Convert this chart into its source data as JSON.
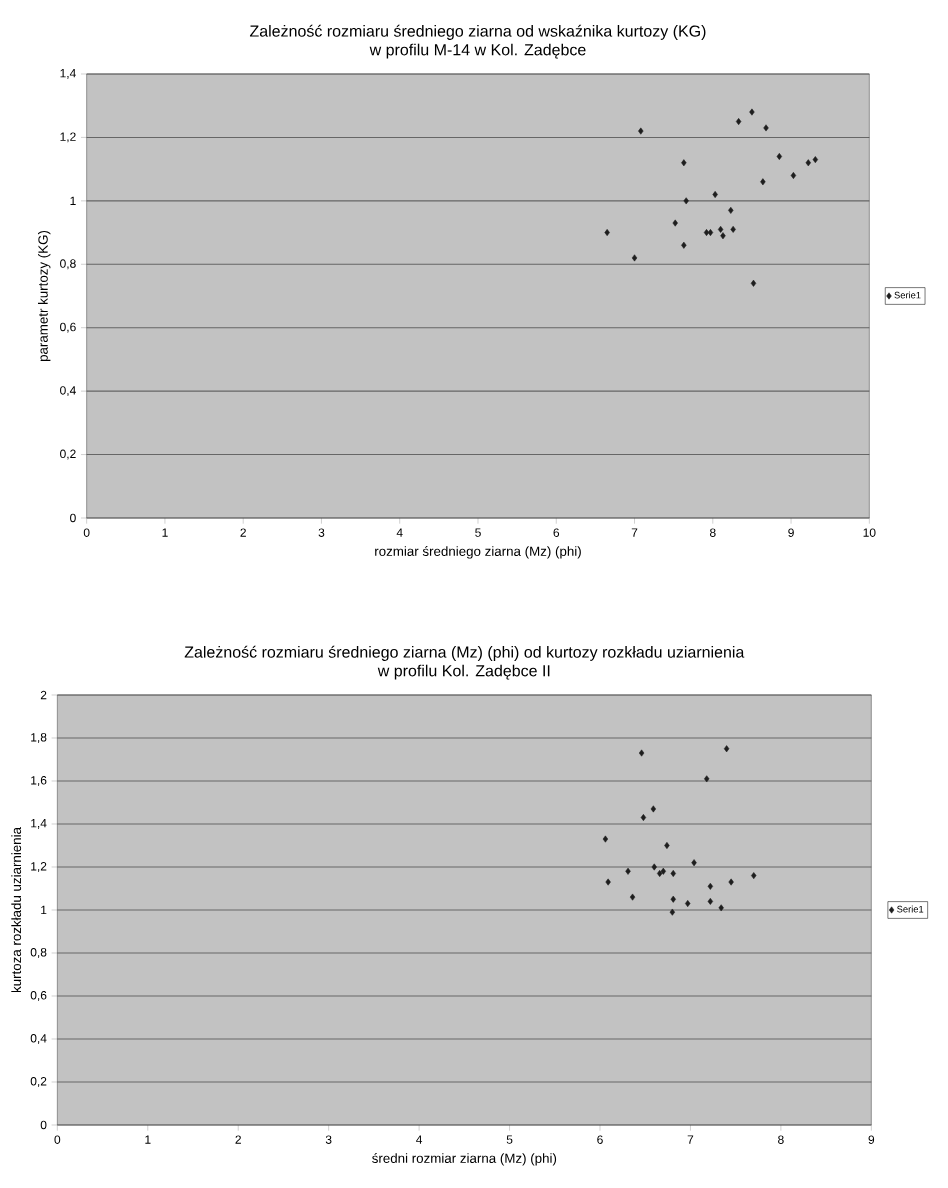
{
  "chart_data": [
    {
      "type": "scatter",
      "title": "Zależność rozmiaru średniego ziarna od wskaźnika kurtozy (KG)",
      "subtitle": "w profilu M-14 w Kol. Zadębce",
      "xlabel": "rozmiar  średniego ziarna (Mz) (phi)",
      "ylabel": "parametr kurtozy (KG)",
      "series": [
        {
          "name": "Serie1",
          "color": "#1e1e1e",
          "x": [
            7.08,
            8.33,
            8.5,
            8.68,
            7.63,
            8.85,
            9.22,
            9.31,
            9.03,
            8.64,
            8.03,
            7.66,
            8.23,
            7.52,
            6.65,
            7.92,
            7.97,
            8.1,
            8.13,
            8.26,
            7.63,
            7.0,
            8.52
          ],
          "values": [
            1.22,
            1.25,
            1.28,
            1.23,
            1.12,
            1.14,
            1.12,
            1.13,
            1.08,
            1.06,
            1.02,
            1.0,
            0.97,
            0.93,
            0.9,
            0.9,
            0.9,
            0.91,
            0.89,
            0.91,
            0.86,
            0.82,
            0.74
          ]
        }
      ],
      "xlim": [
        0,
        10
      ],
      "ylim": [
        0,
        1.4
      ],
      "xticks": [
        0,
        1,
        2,
        3,
        4,
        5,
        6,
        7,
        8,
        9,
        10
      ],
      "yticks": [
        0,
        {
          "value": 0.2,
          "label": "0,2"
        },
        {
          "value": 0.4,
          "label": "0,4"
        },
        {
          "value": 0.6,
          "label": "0,6"
        },
        {
          "value": 0.8,
          "label": "0,8"
        },
        1,
        {
          "value": 1.2,
          "label": "1,2"
        },
        {
          "value": 1.4,
          "label": "1,4"
        }
      ],
      "grid": "y",
      "legend": "right",
      "marker": "diamond"
    },
    {
      "type": "scatter",
      "title": "Zależność rozmiaru średniego ziarna (Mz) (phi) od kurtozy rozkładu uziarnienia",
      "subtitle": "w profilu Kol. Zadębce II",
      "xlabel": "średni rozmiar ziarna (Mz) (phi)",
      "ylabel": "kurtoza rozkładu uziarnienia",
      "series": [
        {
          "name": "Serie1",
          "color": "#1e1e1e",
          "x": [
            6.46,
            7.4,
            7.18,
            6.59,
            6.48,
            6.06,
            6.74,
            7.04,
            6.6,
            6.31,
            6.7,
            6.66,
            6.81,
            7.7,
            6.09,
            7.45,
            7.22,
            6.36,
            6.81,
            7.22,
            6.97,
            7.34,
            6.8
          ],
          "values": [
            1.73,
            1.75,
            1.61,
            1.47,
            1.43,
            1.33,
            1.3,
            1.22,
            1.2,
            1.18,
            1.18,
            1.17,
            1.17,
            1.16,
            1.13,
            1.13,
            1.11,
            1.06,
            1.05,
            1.04,
            1.03,
            1.01,
            0.99
          ]
        }
      ],
      "xlim": [
        0,
        9
      ],
      "ylim": [
        0,
        2
      ],
      "xticks": [
        0,
        1,
        2,
        3,
        4,
        5,
        6,
        7,
        8,
        9
      ],
      "yticks": [
        0,
        {
          "value": 0.2,
          "label": "0,2"
        },
        {
          "value": 0.4,
          "label": "0,4"
        },
        {
          "value": 0.6,
          "label": "0,6"
        },
        {
          "value": 0.8,
          "label": "0,8"
        },
        1,
        {
          "value": 1.2,
          "label": "1,2"
        },
        {
          "value": 1.4,
          "label": "1,4"
        },
        {
          "value": 1.6,
          "label": "1,6"
        },
        {
          "value": 1.8,
          "label": "1,8"
        },
        2
      ],
      "grid": "y",
      "legend": "right",
      "marker": "diamond"
    }
  ]
}
